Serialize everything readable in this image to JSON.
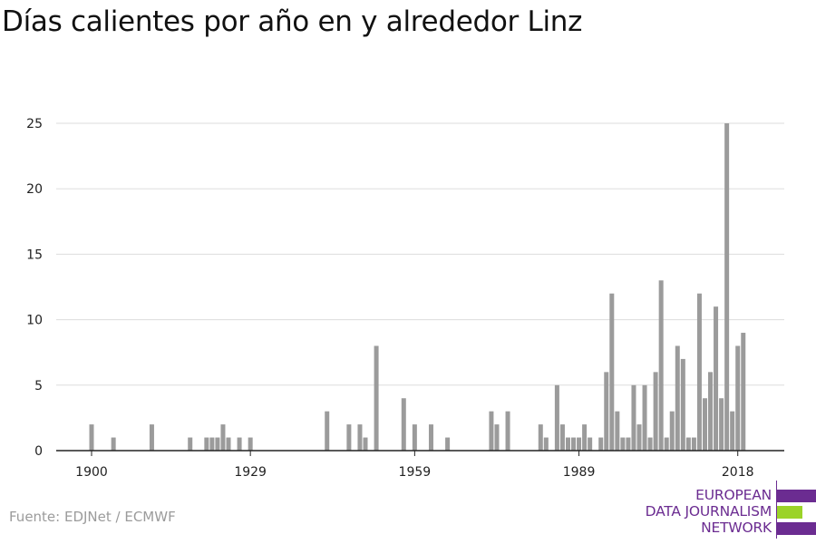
{
  "title": "Días calientes por año en y alrededor Linz",
  "source": "Fuente: EDJNet / ECMWF",
  "logo": {
    "line1": "EUROPEAN",
    "line2": "DATA JOURNALISM",
    "line3": "NETWORK"
  },
  "colors": {
    "bar": "#9b9b9b",
    "grid": "#dddddd",
    "axis": "#222222",
    "logo_purple": "#6b2c91",
    "logo_green": "#9bd328"
  },
  "chart_data": {
    "type": "bar",
    "x": [
      1900,
      1904,
      1911,
      1918,
      1921,
      1922,
      1923,
      1924,
      1925,
      1927,
      1929,
      1943,
      1947,
      1949,
      1950,
      1952,
      1957,
      1959,
      1962,
      1965,
      1973,
      1974,
      1976,
      1982,
      1983,
      1985,
      1986,
      1987,
      1988,
      1989,
      1990,
      1991,
      1993,
      1994,
      1995,
      1996,
      1997,
      1998,
      1999,
      2000,
      2001,
      2002,
      2003,
      2004,
      2005,
      2006,
      2007,
      2008,
      2009,
      2010,
      2011,
      2012,
      2013,
      2014,
      2015,
      2016,
      2017,
      2018,
      2019
    ],
    "values": [
      2,
      1,
      2,
      1,
      1,
      1,
      1,
      2,
      1,
      1,
      1,
      3,
      2,
      2,
      1,
      8,
      4,
      2,
      2,
      1,
      3,
      2,
      3,
      2,
      1,
      5,
      2,
      1,
      1,
      1,
      2,
      1,
      1,
      6,
      12,
      3,
      1,
      1,
      5,
      2,
      5,
      1,
      6,
      13,
      1,
      3,
      8,
      7,
      1,
      1,
      12,
      4,
      6,
      11,
      4,
      25,
      3,
      8,
      9
    ],
    "xticks": [
      "1900",
      "1929",
      "1959",
      "1989",
      "2018"
    ],
    "xlim": [
      1900,
      2019
    ],
    "yticks": [
      "0",
      "5",
      "10",
      "15",
      "20",
      "25"
    ],
    "ylim": [
      0,
      25
    ],
    "xlabel": "",
    "ylabel": "",
    "grid": true
  }
}
